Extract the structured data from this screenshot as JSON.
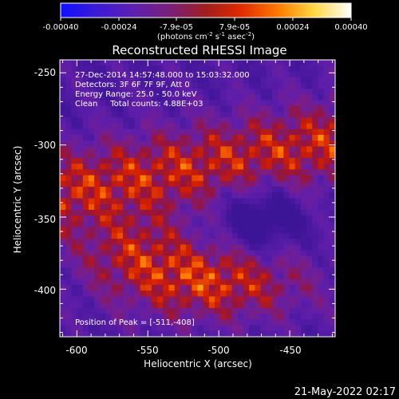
{
  "colorbar": {
    "ticks": [
      "-0.00040",
      "-0.00024",
      "-7.9e-05",
      "7.9e-05",
      "0.00024",
      "0.00040"
    ],
    "units_main": "(photons cm",
    "units_sup1": "-2",
    "units_mid1": " s",
    "units_sup2": "-1",
    "units_mid2": " asec",
    "units_sup3": "-2",
    "units_end": ")",
    "range": [
      -0.0004,
      0.0004
    ]
  },
  "chart_data": {
    "type": "heatmap",
    "title": "Reconstructed RHESSI Image",
    "xlabel": "Heliocentric X (arcsec)",
    "ylabel": "Heliocentric Y (arcsec)",
    "xlim": [
      -612,
      -418
    ],
    "ylim": [
      -433,
      -241
    ],
    "x_ticks": [
      -600,
      -550,
      -500,
      -450
    ],
    "y_ticks": [
      -400,
      -350,
      -300,
      -250
    ],
    "peak": {
      "x": -511,
      "y": -408
    },
    "colormap": "RHESSI red-temperature (blue-violet to white)",
    "grid": false
  },
  "annotations": {
    "line1": "27-Dec-2014 14:57:48.000 to 15:03:32.000",
    "line2": "Detectors: 3F 6F 7F 9F, Att 0",
    "line3": "Energy Range: 25.0 - 50.0 keV",
    "line4": "Clean     Total counts: 4.88E+03",
    "peak_label": "Position of Peak = [-511,-408]"
  },
  "footer": {
    "timestamp": "21-May-2022 02:17"
  },
  "colors": {
    "background": "#000000",
    "foreground": "#ffffff"
  }
}
